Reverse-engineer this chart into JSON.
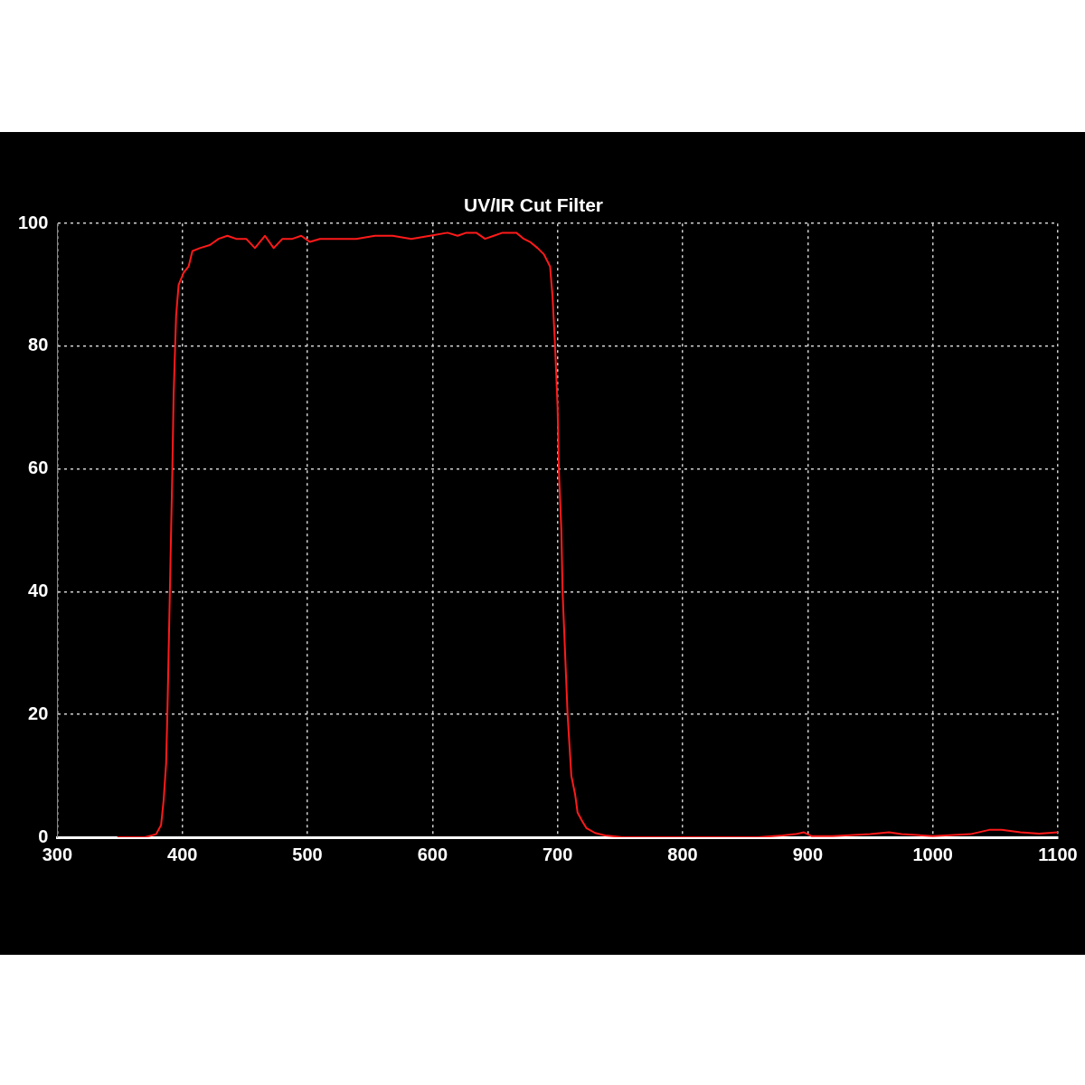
{
  "chart_data": {
    "type": "line",
    "title": "UV/IR Cut Filter",
    "x": [
      348,
      370,
      379,
      383,
      385,
      387,
      388,
      389,
      390,
      391,
      392,
      393,
      395,
      397,
      401,
      405,
      408,
      414,
      422,
      429,
      436,
      443,
      451,
      458,
      466,
      473,
      480,
      488,
      495,
      502,
      510,
      524,
      539,
      554,
      568,
      583,
      598,
      612,
      620,
      627,
      635,
      642,
      649,
      656,
      667,
      673,
      678,
      684,
      689,
      694,
      696,
      698,
      700,
      701,
      703,
      704,
      706,
      708,
      711,
      714,
      716,
      720,
      723,
      730,
      738,
      752,
      800,
      860,
      880,
      890,
      897,
      903,
      920,
      950,
      965,
      975,
      1000,
      1030,
      1045,
      1055,
      1070,
      1085,
      1100
    ],
    "series": [
      {
        "color": "#ff1a1a",
        "values": [
          0,
          0,
          0.5,
          2,
          6,
          12,
          20,
          30,
          40,
          50,
          60,
          72,
          85,
          90,
          92,
          93,
          95.5,
          96,
          96.5,
          97.5,
          98,
          97.5,
          97.5,
          96,
          98,
          96,
          97.5,
          97.5,
          98,
          97,
          97.5,
          97.5,
          97.5,
          98,
          98,
          97.5,
          98,
          98.5,
          98,
          98.5,
          98.5,
          97.5,
          98,
          98.5,
          98.5,
          97.5,
          97,
          96,
          95,
          93,
          88,
          80,
          70,
          60,
          50,
          40,
          30,
          20,
          10,
          7,
          4,
          2.5,
          1.5,
          0.7,
          0.3,
          0,
          0,
          0,
          0.3,
          0.5,
          0.8,
          0.2,
          0.2,
          0.5,
          0.8,
          0.5,
          0.2,
          0.5,
          1.2,
          1.2,
          0.8,
          0.6,
          0.8
        ]
      }
    ],
    "xlim": [
      300,
      1100
    ],
    "ylim": [
      0,
      100
    ],
    "xticks": [
      300,
      400,
      500,
      600,
      700,
      800,
      900,
      1000,
      1100
    ],
    "yticks": [
      0,
      20,
      40,
      60,
      80,
      100
    ],
    "grid": true,
    "legend": false,
    "marker": "none",
    "line_style": "solid"
  }
}
